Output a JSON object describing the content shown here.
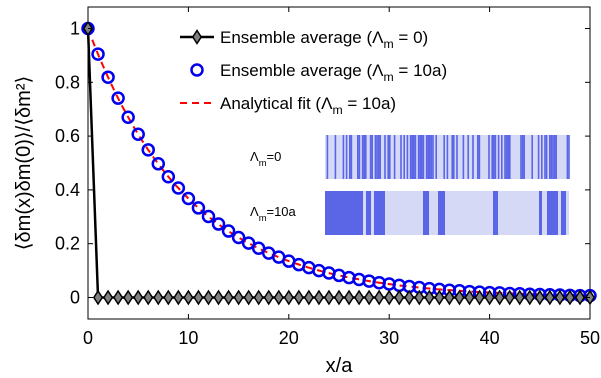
{
  "chart_data": {
    "type": "line",
    "xlabel": "x/a",
    "ylabel": "⟨δm(x)δm(0)⟩/⟨δm²⟩",
    "xlim": [
      0,
      50
    ],
    "ylim": [
      -0.08,
      1.08
    ],
    "xticks": [
      "0",
      "10",
      "20",
      "30",
      "40",
      "50"
    ],
    "yticks": [
      "0",
      "0.2",
      "0.4",
      "0.6",
      "0.8",
      "1"
    ],
    "grid": false,
    "legend_position": "top-center",
    "series": [
      {
        "name": "Ensemble average (Λm = 0)",
        "marker": "diamond",
        "color": "#000000",
        "marker_fill": "#808080",
        "x": [
          0,
          1,
          2,
          3,
          4,
          5,
          6,
          7,
          8,
          9,
          10,
          11,
          12,
          13,
          14,
          15,
          16,
          17,
          18,
          19,
          20,
          21,
          22,
          23,
          24,
          25,
          26,
          27,
          28,
          29,
          30,
          31,
          32,
          33,
          34,
          35,
          36,
          37,
          38,
          39,
          40,
          41,
          42,
          43,
          44,
          45,
          46,
          47,
          48,
          49,
          50
        ],
        "y": [
          1,
          0,
          0,
          0,
          0,
          0,
          0,
          0,
          0,
          0,
          0,
          0,
          0,
          0,
          0,
          0,
          0,
          0,
          0,
          0,
          0,
          0,
          0,
          0,
          0,
          0,
          0,
          0,
          0,
          0,
          0,
          0,
          0,
          0,
          0,
          0,
          0,
          0,
          0,
          0,
          0,
          0,
          0,
          0,
          0,
          0,
          0,
          0,
          0,
          0,
          0
        ]
      },
      {
        "name": "Ensemble average (Λm = 10a)",
        "marker": "circle",
        "color": "#0000ee",
        "x": [
          0,
          1,
          2,
          3,
          4,
          5,
          6,
          7,
          8,
          9,
          10,
          11,
          12,
          13,
          14,
          15,
          16,
          17,
          18,
          19,
          20,
          21,
          22,
          23,
          24,
          25,
          26,
          27,
          28,
          29,
          30,
          31,
          32,
          33,
          34,
          35,
          36,
          37,
          38,
          39,
          40,
          41,
          42,
          43,
          44,
          45,
          46,
          47,
          48,
          49,
          50
        ],
        "y": [
          1,
          0.905,
          0.819,
          0.741,
          0.67,
          0.607,
          0.549,
          0.497,
          0.449,
          0.407,
          0.368,
          0.333,
          0.301,
          0.273,
          0.247,
          0.223,
          0.202,
          0.183,
          0.165,
          0.15,
          0.135,
          0.122,
          0.111,
          0.1,
          0.091,
          0.082,
          0.074,
          0.067,
          0.061,
          0.055,
          0.05,
          0.045,
          0.041,
          0.037,
          0.033,
          0.03,
          0.027,
          0.025,
          0.022,
          0.02,
          0.018,
          0.017,
          0.015,
          0.014,
          0.012,
          0.011,
          0.01,
          0.009,
          0.008,
          0.007,
          0.007
        ]
      },
      {
        "name": "Analytical fit (Λm = 10a)",
        "line_style": "dashed",
        "color": "#ff0000",
        "decay_length": 10
      }
    ],
    "legend": [
      {
        "pre": "Ensemble average (Λ",
        "sub": "m",
        "post": " = 0)"
      },
      {
        "pre": "Ensemble average (Λ",
        "sub": "m",
        "post": " = 10a)"
      },
      {
        "pre": "Analytical fit (Λ",
        "sub": "m",
        "post": " = 10a)"
      }
    ],
    "inset": {
      "labels": [
        {
          "pre": "Λ",
          "sub": "m",
          "post": "=0"
        },
        {
          "pre": "Λ",
          "sub": "m",
          "post": "=10a"
        }
      ],
      "colors": {
        "dark": "#5a66e6",
        "light": "#d6d9f5"
      }
    }
  }
}
